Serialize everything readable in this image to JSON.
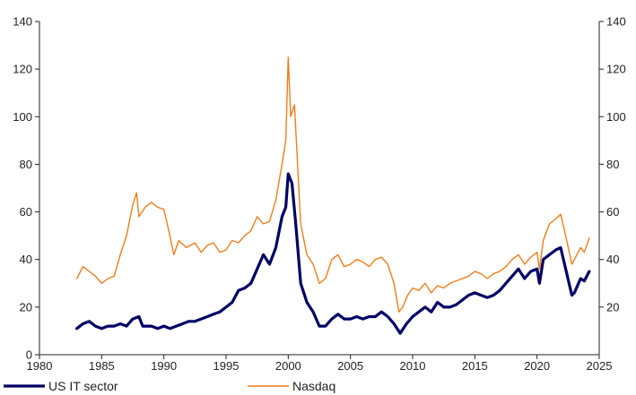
{
  "chart_data": {
    "type": "line",
    "title": "",
    "xlabel": "",
    "ylabel": "",
    "xlim": [
      1980,
      2025
    ],
    "ylim": [
      0,
      140
    ],
    "y2lim": [
      0,
      140
    ],
    "x_ticks": [
      "1980",
      "1985",
      "1990",
      "1995",
      "2000",
      "2005",
      "2010",
      "2015",
      "2020",
      "2025"
    ],
    "y_ticks": [
      "0",
      "20",
      "40",
      "60",
      "80",
      "100",
      "120",
      "140"
    ],
    "y2_ticks": [
      "20",
      "40",
      "60",
      "80",
      "100",
      "120",
      "140"
    ],
    "grid": false,
    "legend_position": "bottom",
    "series": [
      {
        "name": "US IT sector",
        "color": "#000066",
        "line_style": "thick",
        "points": [
          [
            1983.0,
            11
          ],
          [
            1983.5,
            13
          ],
          [
            1984.0,
            14
          ],
          [
            1984.5,
            12
          ],
          [
            1985.0,
            11
          ],
          [
            1985.5,
            12
          ],
          [
            1986.0,
            12
          ],
          [
            1986.5,
            13
          ],
          [
            1987.0,
            12
          ],
          [
            1987.5,
            15
          ],
          [
            1988.0,
            16
          ],
          [
            1988.3,
            12
          ],
          [
            1989.0,
            12
          ],
          [
            1989.5,
            11
          ],
          [
            1990.0,
            12
          ],
          [
            1990.5,
            11
          ],
          [
            1991.0,
            12
          ],
          [
            1991.5,
            13
          ],
          [
            1992.0,
            14
          ],
          [
            1992.5,
            14
          ],
          [
            1993.0,
            15
          ],
          [
            1993.5,
            16
          ],
          [
            1994.0,
            17
          ],
          [
            1994.5,
            18
          ],
          [
            1995.0,
            20
          ],
          [
            1995.5,
            22
          ],
          [
            1996.0,
            27
          ],
          [
            1996.5,
            28
          ],
          [
            1997.0,
            30
          ],
          [
            1997.5,
            36
          ],
          [
            1998.0,
            42
          ],
          [
            1998.5,
            38
          ],
          [
            1999.0,
            45
          ],
          [
            1999.5,
            58
          ],
          [
            1999.8,
            62
          ],
          [
            2000.0,
            76
          ],
          [
            2000.3,
            72
          ],
          [
            2000.6,
            55
          ],
          [
            2001.0,
            30
          ],
          [
            2001.5,
            22
          ],
          [
            2002.0,
            18
          ],
          [
            2002.5,
            12
          ],
          [
            2003.0,
            12
          ],
          [
            2003.5,
            15
          ],
          [
            2004.0,
            17
          ],
          [
            2004.5,
            15
          ],
          [
            2005.0,
            15
          ],
          [
            2005.5,
            16
          ],
          [
            2006.0,
            15
          ],
          [
            2006.5,
            16
          ],
          [
            2007.0,
            16
          ],
          [
            2007.5,
            18
          ],
          [
            2008.0,
            16
          ],
          [
            2008.5,
            13
          ],
          [
            2009.0,
            9
          ],
          [
            2009.5,
            13
          ],
          [
            2010.0,
            16
          ],
          [
            2010.5,
            18
          ],
          [
            2011.0,
            20
          ],
          [
            2011.5,
            18
          ],
          [
            2012.0,
            22
          ],
          [
            2012.5,
            20
          ],
          [
            2013.0,
            20
          ],
          [
            2013.5,
            21
          ],
          [
            2014.0,
            23
          ],
          [
            2014.5,
            25
          ],
          [
            2015.0,
            26
          ],
          [
            2015.5,
            25
          ],
          [
            2016.0,
            24
          ],
          [
            2016.5,
            25
          ],
          [
            2017.0,
            27
          ],
          [
            2017.5,
            30
          ],
          [
            2018.0,
            33
          ],
          [
            2018.5,
            36
          ],
          [
            2019.0,
            32
          ],
          [
            2019.5,
            35
          ],
          [
            2020.0,
            36
          ],
          [
            2020.2,
            30
          ],
          [
            2020.5,
            40
          ],
          [
            2021.0,
            42
          ],
          [
            2021.5,
            44
          ],
          [
            2021.9,
            45
          ],
          [
            2022.3,
            36
          ],
          [
            2022.8,
            25
          ],
          [
            2023.0,
            26
          ],
          [
            2023.5,
            32
          ],
          [
            2023.8,
            31
          ],
          [
            2024.2,
            35
          ]
        ]
      },
      {
        "name": "Nasdaq",
        "color": "#f07d1c",
        "line_style": "thin",
        "points": [
          [
            1983.0,
            32
          ],
          [
            1983.5,
            37
          ],
          [
            1984.0,
            35
          ],
          [
            1984.5,
            33
          ],
          [
            1985.0,
            30
          ],
          [
            1985.5,
            32
          ],
          [
            1986.0,
            33
          ],
          [
            1986.5,
            42
          ],
          [
            1987.0,
            50
          ],
          [
            1987.5,
            63
          ],
          [
            1987.8,
            68
          ],
          [
            1988.0,
            58
          ],
          [
            1988.5,
            62
          ],
          [
            1989.0,
            64
          ],
          [
            1989.5,
            62
          ],
          [
            1990.0,
            61
          ],
          [
            1990.4,
            52
          ],
          [
            1990.8,
            42
          ],
          [
            1991.2,
            48
          ],
          [
            1991.8,
            45
          ],
          [
            1992.5,
            47
          ],
          [
            1993.0,
            43
          ],
          [
            1993.5,
            46
          ],
          [
            1994.0,
            47
          ],
          [
            1994.5,
            43
          ],
          [
            1995.0,
            44
          ],
          [
            1995.5,
            48
          ],
          [
            1996.0,
            47
          ],
          [
            1996.5,
            50
          ],
          [
            1997.0,
            52
          ],
          [
            1997.5,
            58
          ],
          [
            1998.0,
            55
          ],
          [
            1998.5,
            56
          ],
          [
            1999.0,
            65
          ],
          [
            1999.5,
            80
          ],
          [
            1999.8,
            90
          ],
          [
            2000.0,
            125
          ],
          [
            2000.2,
            100
          ],
          [
            2000.5,
            105
          ],
          [
            2000.8,
            75
          ],
          [
            2001.0,
            55
          ],
          [
            2001.5,
            42
          ],
          [
            2002.0,
            38
          ],
          [
            2002.5,
            30
          ],
          [
            2003.0,
            32
          ],
          [
            2003.5,
            40
          ],
          [
            2004.0,
            42
          ],
          [
            2004.5,
            37
          ],
          [
            2005.0,
            38
          ],
          [
            2005.5,
            40
          ],
          [
            2006.0,
            39
          ],
          [
            2006.5,
            37
          ],
          [
            2007.0,
            40
          ],
          [
            2007.5,
            41
          ],
          [
            2008.0,
            38
          ],
          [
            2008.5,
            30
          ],
          [
            2008.9,
            18
          ],
          [
            2009.2,
            20
          ],
          [
            2009.6,
            25
          ],
          [
            2010.0,
            28
          ],
          [
            2010.5,
            27
          ],
          [
            2011.0,
            30
          ],
          [
            2011.5,
            26
          ],
          [
            2012.0,
            29
          ],
          [
            2012.5,
            28
          ],
          [
            2013.0,
            30
          ],
          [
            2013.5,
            31
          ],
          [
            2014.0,
            32
          ],
          [
            2014.5,
            33
          ],
          [
            2015.0,
            35
          ],
          [
            2015.5,
            34
          ],
          [
            2016.0,
            32
          ],
          [
            2016.5,
            34
          ],
          [
            2017.0,
            35
          ],
          [
            2017.5,
            37
          ],
          [
            2018.0,
            40
          ],
          [
            2018.5,
            42
          ],
          [
            2019.0,
            38
          ],
          [
            2019.5,
            41
          ],
          [
            2020.0,
            43
          ],
          [
            2020.2,
            36
          ],
          [
            2020.5,
            48
          ],
          [
            2021.0,
            55
          ],
          [
            2021.5,
            57
          ],
          [
            2021.9,
            59
          ],
          [
            2022.3,
            50
          ],
          [
            2022.8,
            38
          ],
          [
            2023.0,
            40
          ],
          [
            2023.5,
            45
          ],
          [
            2023.8,
            43
          ],
          [
            2024.2,
            49
          ]
        ]
      }
    ]
  }
}
